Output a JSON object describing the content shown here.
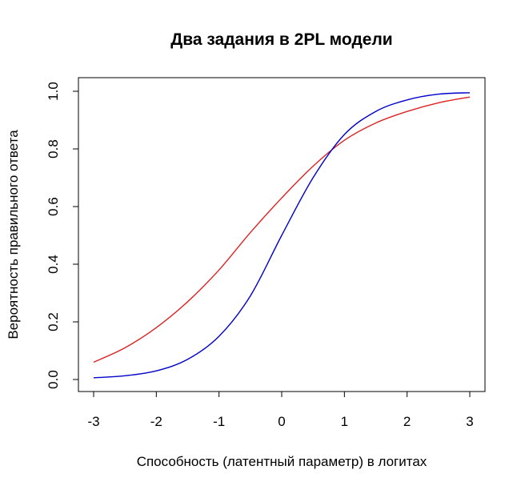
{
  "chart_data": {
    "type": "line",
    "title": "Два задания в 2PL модели",
    "xlabel": "Способность (латентный параметр) в логитах",
    "ylabel": "Вероятность правильного ответа",
    "xlim": [
      -3,
      3
    ],
    "ylim": [
      0,
      1
    ],
    "x_ticks": [
      -3,
      -2,
      -1,
      0,
      1,
      2,
      3
    ],
    "x_tick_labels": [
      "-3",
      "-2",
      "-1",
      "0",
      "1",
      "2",
      "3"
    ],
    "y_ticks": [
      0,
      0.2,
      0.4,
      0.6,
      0.8,
      1
    ],
    "y_tick_labels": [
      "0.0",
      "0.2",
      "0.4",
      "0.6",
      "0.8",
      "1.0"
    ],
    "grid": false,
    "legend": "none",
    "series": [
      {
        "color": "#dd2222",
        "x": [
          -3,
          -2.5,
          -2,
          -1.5,
          -1,
          -0.5,
          0,
          0.5,
          1,
          1.5,
          2,
          2.5,
          3
        ],
        "y": [
          0.06,
          0.11,
          0.18,
          0.27,
          0.38,
          0.51,
          0.63,
          0.74,
          0.83,
          0.89,
          0.93,
          0.96,
          0.98
        ]
      },
      {
        "color": "#0000cc",
        "x": [
          -3,
          -2.5,
          -2,
          -1.5,
          -1,
          -0.5,
          0,
          0.5,
          1,
          1.5,
          2,
          2.5,
          3
        ],
        "y": [
          0.006,
          0.013,
          0.03,
          0.07,
          0.15,
          0.29,
          0.5,
          0.7,
          0.85,
          0.93,
          0.97,
          0.99,
          0.995
        ]
      }
    ]
  }
}
